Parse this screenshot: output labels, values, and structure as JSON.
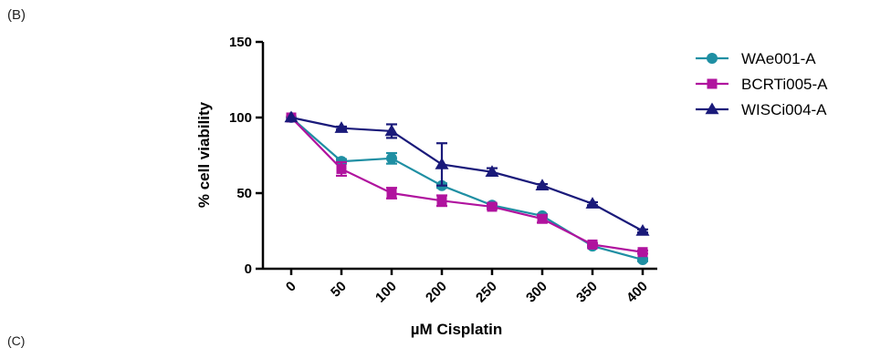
{
  "panel_label": "(B)",
  "bottom_label": "(C)",
  "chart_data": {
    "type": "line",
    "title": "",
    "xlabel": "µM Cisplatin",
    "ylabel": "% cell viability",
    "categories": [
      "0",
      "50",
      "100",
      "200",
      "250",
      "300",
      "350",
      "400"
    ],
    "ylim": [
      0,
      150
    ],
    "yticks": [
      0,
      50,
      100,
      150
    ],
    "grid": false,
    "legend_position": "right",
    "series": [
      {
        "name": "WAe001-A",
        "color": "#1f8fa3",
        "marker": "circle",
        "values": [
          100,
          71,
          73,
          55,
          42,
          35,
          15,
          6
        ],
        "errors": [
          0,
          1.5,
          3.5,
          1.5,
          1,
          1,
          1,
          1
        ]
      },
      {
        "name": "BCRTi005-A",
        "color": "#b0139e",
        "marker": "square",
        "values": [
          100,
          66,
          50,
          45,
          41,
          33,
          16,
          11
        ],
        "errors": [
          0,
          4.5,
          3.5,
          3.5,
          1.5,
          2.5,
          1,
          1
        ]
      },
      {
        "name": "WISCi004-A",
        "color": "#1a1a7a",
        "marker": "triangle",
        "values": [
          100,
          93,
          91,
          69,
          64,
          55,
          43,
          25
        ],
        "errors": [
          0,
          1,
          4.5,
          14,
          2.5,
          1,
          1,
          1
        ]
      }
    ]
  }
}
